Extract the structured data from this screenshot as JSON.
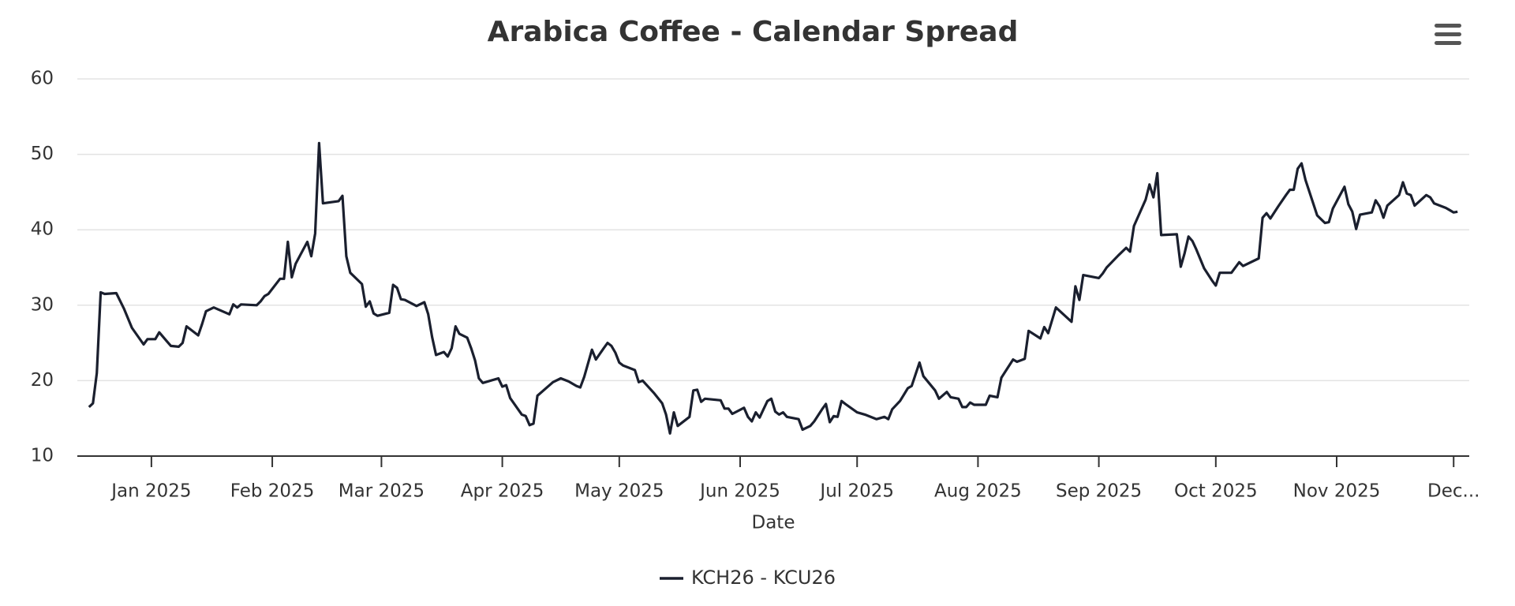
{
  "chart_data": {
    "type": "line",
    "title": "Arabica Coffee - Calendar Spread",
    "x_label": "Date",
    "x": [
      -16,
      -15,
      -14,
      -13,
      -12,
      -9,
      -7,
      -5,
      -2,
      -1,
      1,
      2,
      4,
      5,
      7,
      8,
      9,
      12,
      13,
      14,
      16,
      20,
      21,
      22,
      23,
      27,
      28,
      29,
      30,
      33,
      34,
      35,
      36,
      37,
      40,
      41,
      42,
      43,
      44,
      48,
      49,
      50,
      51,
      54,
      55,
      56,
      57,
      58,
      61,
      62,
      63,
      64,
      65,
      68,
      70,
      71,
      72,
      73,
      75,
      76,
      77,
      78,
      79,
      81,
      82,
      83,
      84,
      85,
      89,
      90,
      91,
      92,
      95,
      96,
      97,
      98,
      99,
      101,
      103,
      105,
      107,
      109,
      110,
      111,
      113,
      114,
      116,
      117,
      118,
      119,
      120,
      121,
      124,
      125,
      126,
      129,
      131,
      132,
      133,
      134,
      135,
      138,
      139,
      140,
      141,
      142,
      146,
      147,
      148,
      149,
      152,
      153,
      154,
      155,
      156,
      157,
      158,
      159,
      160,
      161,
      162,
      163,
      166,
      167,
      169,
      170,
      172,
      173,
      174,
      175,
      176,
      177,
      178,
      181,
      183,
      186,
      188,
      189,
      190,
      192,
      194,
      195,
      197,
      198,
      201,
      202,
      204,
      205,
      207,
      208,
      209,
      210,
      211,
      214,
      215,
      217,
      218,
      221,
      222,
      224,
      225,
      228,
      229,
      230,
      232,
      236,
      237,
      238,
      239,
      243,
      244,
      245,
      248,
      250,
      251,
      252,
      255,
      256,
      257,
      258,
      259,
      263,
      264,
      265,
      266,
      267,
      268,
      270,
      272,
      273,
      274,
      277,
      279,
      280,
      284,
      285,
      286,
      287,
      289,
      291,
      292,
      293,
      294,
      295,
      296,
      299,
      300,
      301,
      302,
      303,
      306,
      307,
      308,
      309,
      310,
      313,
      314,
      315,
      316,
      317,
      320,
      321,
      322,
      323,
      324,
      327,
      328,
      329,
      332,
      333,
      334,
      335
    ],
    "series": [
      {
        "name": "KCH26 - KCU26",
        "color": "#1a1f2e",
        "values": [
          16.5,
          17,
          21,
          31.7,
          31.5,
          31.6,
          29.5,
          27,
          24.8,
          25.5,
          25.5,
          26.4,
          25.2,
          24.6,
          24.5,
          25,
          27.2,
          26,
          27.5,
          29.2,
          29.7,
          28.8,
          30.1,
          29.7,
          30.1,
          30,
          30.5,
          31.2,
          31.5,
          33.5,
          33.5,
          38.4,
          33.7,
          35.5,
          38.4,
          36.5,
          39.5,
          51.5,
          43.5,
          43.8,
          44.5,
          36.5,
          34.3,
          32.8,
          29.8,
          30.5,
          28.9,
          28.6,
          29,
          32.7,
          32.3,
          30.8,
          30.7,
          29.9,
          30.4,
          28.8,
          25.8,
          23.4,
          23.8,
          23.2,
          24.3,
          27.2,
          26.2,
          25.7,
          24.3,
          22.7,
          20.3,
          19.7,
          20.3,
          19.2,
          19.4,
          17.7,
          15.5,
          15.3,
          14.1,
          14.3,
          18,
          18.9,
          19.8,
          20.3,
          19.9,
          19.3,
          19.1,
          20.5,
          24.1,
          22.8,
          24.3,
          25,
          24.6,
          23.7,
          22.4,
          22,
          21.4,
          19.8,
          20,
          18.3,
          17,
          15.5,
          13,
          15.8,
          14,
          15.2,
          18.7,
          18.8,
          17.2,
          17.6,
          17.4,
          16.3,
          16.3,
          15.6,
          16.4,
          15.2,
          14.6,
          15.8,
          15.1,
          16.2,
          17.3,
          17.6,
          15.9,
          15.5,
          15.8,
          15.2,
          14.9,
          13.5,
          14,
          14.6,
          16.2,
          16.9,
          14.5,
          15.3,
          15.2,
          17.3,
          16.9,
          15.8,
          15.5,
          14.9,
          15.2,
          14.9,
          16.2,
          17.3,
          19,
          19.3,
          22.4,
          20.6,
          18.7,
          17.6,
          18.5,
          17.8,
          17.6,
          16.5,
          16.5,
          17.1,
          16.8,
          16.8,
          18,
          17.8,
          20.4,
          22.8,
          22.5,
          22.9,
          26.6,
          25.6,
          27.1,
          26.3,
          29.7,
          27.8,
          32.5,
          30.7,
          34,
          33.6,
          34.2,
          35,
          36.6,
          37.6,
          37.1,
          40.5,
          44,
          46,
          44.3,
          47.5,
          39.3,
          39.4,
          35.1,
          36.9,
          39.1,
          38.5,
          37.4,
          34.9,
          33.3,
          32.6,
          34.3,
          34.3,
          35.7,
          35.2,
          36.2,
          41.6,
          42.2,
          41.5,
          43.1,
          44.6,
          45.3,
          45.3,
          48.1,
          48.8,
          46.6,
          41.9,
          41.4,
          40.9,
          41,
          42.8,
          45.7,
          43.4,
          42.4,
          40.1,
          42,
          42.3,
          43.9,
          43.1,
          41.6,
          43.2,
          44.6,
          46.3,
          44.8,
          44.6,
          43.2,
          44.6,
          44.3,
          43.5,
          42.9,
          42.6,
          42.3,
          42.4
        ]
      }
    ],
    "xlim": [
      -19,
      338
    ],
    "xticks": [
      {
        "value": 0,
        "label": "Jan 2025"
      },
      {
        "value": 31,
        "label": "Feb 2025"
      },
      {
        "value": 59,
        "label": "Mar 2025"
      },
      {
        "value": 90,
        "label": "Apr 2025"
      },
      {
        "value": 120,
        "label": "May 2025"
      },
      {
        "value": 151,
        "label": "Jun 2025"
      },
      {
        "value": 181,
        "label": "Jul 2025"
      },
      {
        "value": 212,
        "label": "Aug 2025"
      },
      {
        "value": 243,
        "label": "Sep 2025"
      },
      {
        "value": 273,
        "label": "Oct 2025"
      },
      {
        "value": 304,
        "label": "Nov 2025"
      },
      {
        "value": 334,
        "label": "Dec..."
      }
    ],
    "ylim": [
      10,
      60
    ],
    "yticks": [
      10,
      20,
      30,
      40,
      50,
      60
    ],
    "grid": true,
    "legend": "bottom"
  }
}
